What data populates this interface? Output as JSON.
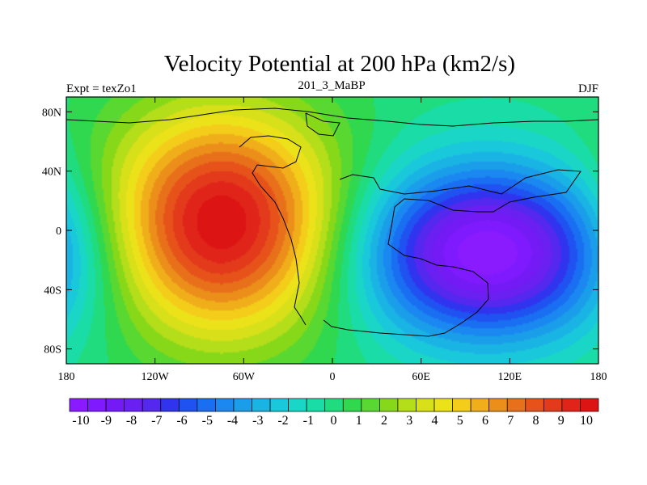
{
  "chart_data": {
    "type": "heatmap",
    "title": "Velocity Potential at 200 hPa (km2/s)",
    "left_label": "Expt = texZo1",
    "center_label": "201_3_MaBP",
    "right_label": "DJF",
    "x_range": [
      -180,
      180
    ],
    "y_range": [
      -90,
      90
    ],
    "x_ticks": [
      {
        "value": -180,
        "label": "180"
      },
      {
        "value": -120,
        "label": "120W"
      },
      {
        "value": -60,
        "label": "60W"
      },
      {
        "value": 0,
        "label": "0"
      },
      {
        "value": 60,
        "label": "60E"
      },
      {
        "value": 120,
        "label": "120E"
      },
      {
        "value": 180,
        "label": "180"
      }
    ],
    "y_ticks": [
      {
        "value": 80,
        "label": "80N"
      },
      {
        "value": 40,
        "label": "40N"
      },
      {
        "value": 0,
        "label": "0"
      },
      {
        "value": -40,
        "label": "40S"
      },
      {
        "value": -80,
        "label": "80S"
      }
    ],
    "value_range": [
      -11,
      11
    ],
    "field_centers": [
      {
        "name": "positive-center",
        "lon": -75,
        "lat": 5,
        "peak": 11
      },
      {
        "name": "negative-center",
        "lon": 105,
        "lat": -15,
        "peak": -11
      }
    ],
    "colorbar": {
      "labels": [
        "-10",
        "-9",
        "-8",
        "-7",
        "-6",
        "-5",
        "-4",
        "-3",
        "-2",
        "-1",
        "0",
        "1",
        "2",
        "3",
        "4",
        "5",
        "6",
        "7",
        "8",
        "9",
        "10"
      ],
      "colors": [
        "#8a1aff",
        "#7f1aff",
        "#741af5",
        "#6a20f0",
        "#5428ee",
        "#3034ee",
        "#1f52f0",
        "#1a6ef2",
        "#1a88f0",
        "#1a9eea",
        "#1ab4e4",
        "#1ac8dc",
        "#1ad6c6",
        "#1adca6",
        "#20dc7e",
        "#30d850",
        "#58d830",
        "#88d81a",
        "#b4de1a",
        "#d8e01a",
        "#ece21a",
        "#f4cc1a",
        "#f0ae1a",
        "#ec8e1a",
        "#e8701a",
        "#e6521a",
        "#e23a1a",
        "#e0241a",
        "#dc1414"
      ]
    }
  }
}
